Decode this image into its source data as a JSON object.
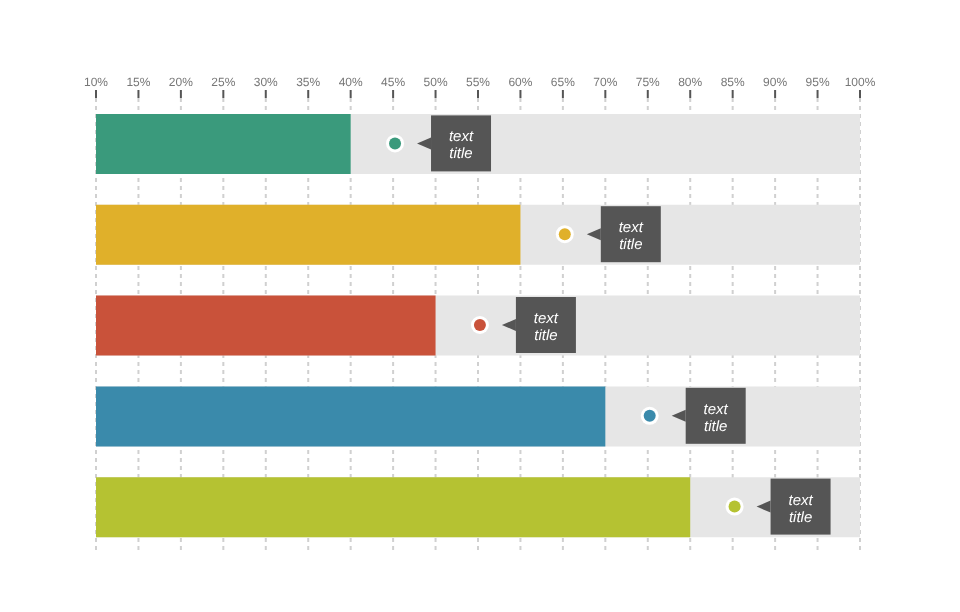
{
  "chart_data": {
    "type": "bar",
    "orientation": "horizontal",
    "categories": [
      null,
      null,
      null,
      null,
      null
    ],
    "values": [
      40,
      60,
      50,
      70,
      80
    ],
    "colors": [
      "#3a9a7c",
      "#e0b02a",
      "#c9523a",
      "#3a8aab",
      "#b5c232"
    ],
    "xlim": [
      10,
      100
    ],
    "xticks": [
      {
        "value": 10,
        "label": "10%"
      },
      {
        "value": 15,
        "label": "15%"
      },
      {
        "value": 20,
        "label": "20%"
      },
      {
        "value": 25,
        "label": "25%"
      },
      {
        "value": 30,
        "label": "30%"
      },
      {
        "value": 35,
        "label": "35%"
      },
      {
        "value": 40,
        "label": "40%"
      },
      {
        "value": 45,
        "label": "45%"
      },
      {
        "value": 50,
        "label": "50%"
      },
      {
        "value": 55,
        "label": "55%"
      },
      {
        "value": 60,
        "label": "60%"
      },
      {
        "value": 65,
        "label": "65%"
      },
      {
        "value": 70,
        "label": "70%"
      },
      {
        "value": 75,
        "label": "75%"
      },
      {
        "value": 80,
        "label": "80%"
      },
      {
        "value": 85,
        "label": "85%"
      },
      {
        "value": 90,
        "label": "90%"
      },
      {
        "value": 95,
        "label": "95%"
      },
      {
        "value": 100,
        "label": "100%"
      }
    ],
    "grid": "x",
    "annotations": [
      {
        "text": "text title",
        "x": 53
      },
      {
        "text": "text title",
        "x": 73
      },
      {
        "text": "text title",
        "x": 63
      },
      {
        "text": "text title",
        "x": 83
      },
      {
        "text": "text title",
        "x": 93
      }
    ]
  }
}
